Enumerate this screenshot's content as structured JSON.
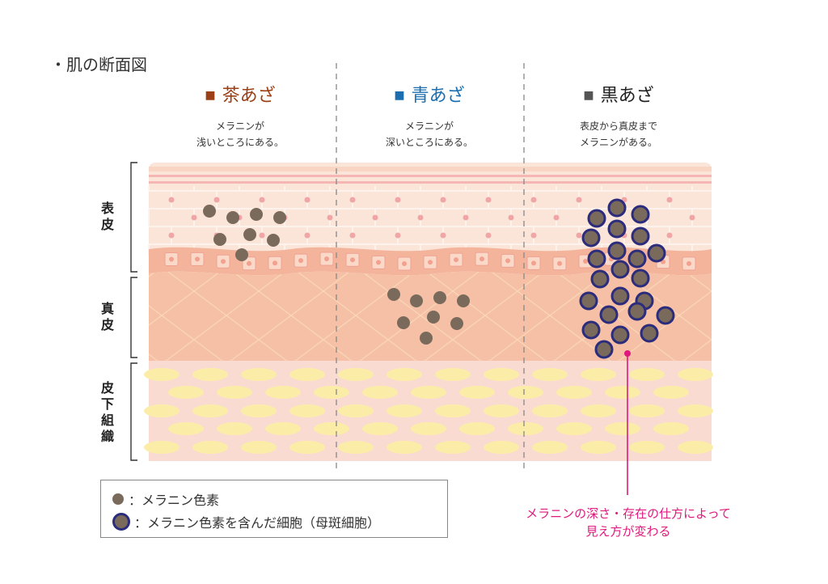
{
  "title": "・肌の断面図",
  "colors": {
    "brown": "#9a3f16",
    "blue": "#1b6fb0",
    "black": "#222222",
    "melanin": "#7a6a5c",
    "cell_ring": "#2b2c7c",
    "accent": "#e0197d",
    "epidermis": "#fbe4d8",
    "basal": "#f4b49c",
    "dermis": "#f6c0a6",
    "subcutis": "#fadbd1",
    "fat": "#fbeda8"
  },
  "columns": [
    {
      "square": "■",
      "title": "茶あざ",
      "desc": [
        "メラニンが",
        "浅いところにある。"
      ]
    },
    {
      "square": "■",
      "title": "青あざ",
      "desc": [
        "メラニンが",
        "深いところにある。"
      ]
    },
    {
      "square": "■",
      "title": "黒あざ",
      "desc": [
        "表皮から真皮まで",
        "メラニンがある。"
      ]
    }
  ],
  "layers": {
    "epidermis": [
      "表",
      "皮"
    ],
    "dermis": [
      "真",
      "皮"
    ],
    "subcutis": [
      "皮",
      "下",
      "組",
      "織"
    ]
  },
  "legend": {
    "melanin": "：メラニン色素",
    "cell": "：メラニン色素を含んだ細胞（母斑細胞）"
  },
  "annotation": [
    "メラニンの深さ・存在の仕方によって",
    "見え方が変わる"
  ]
}
